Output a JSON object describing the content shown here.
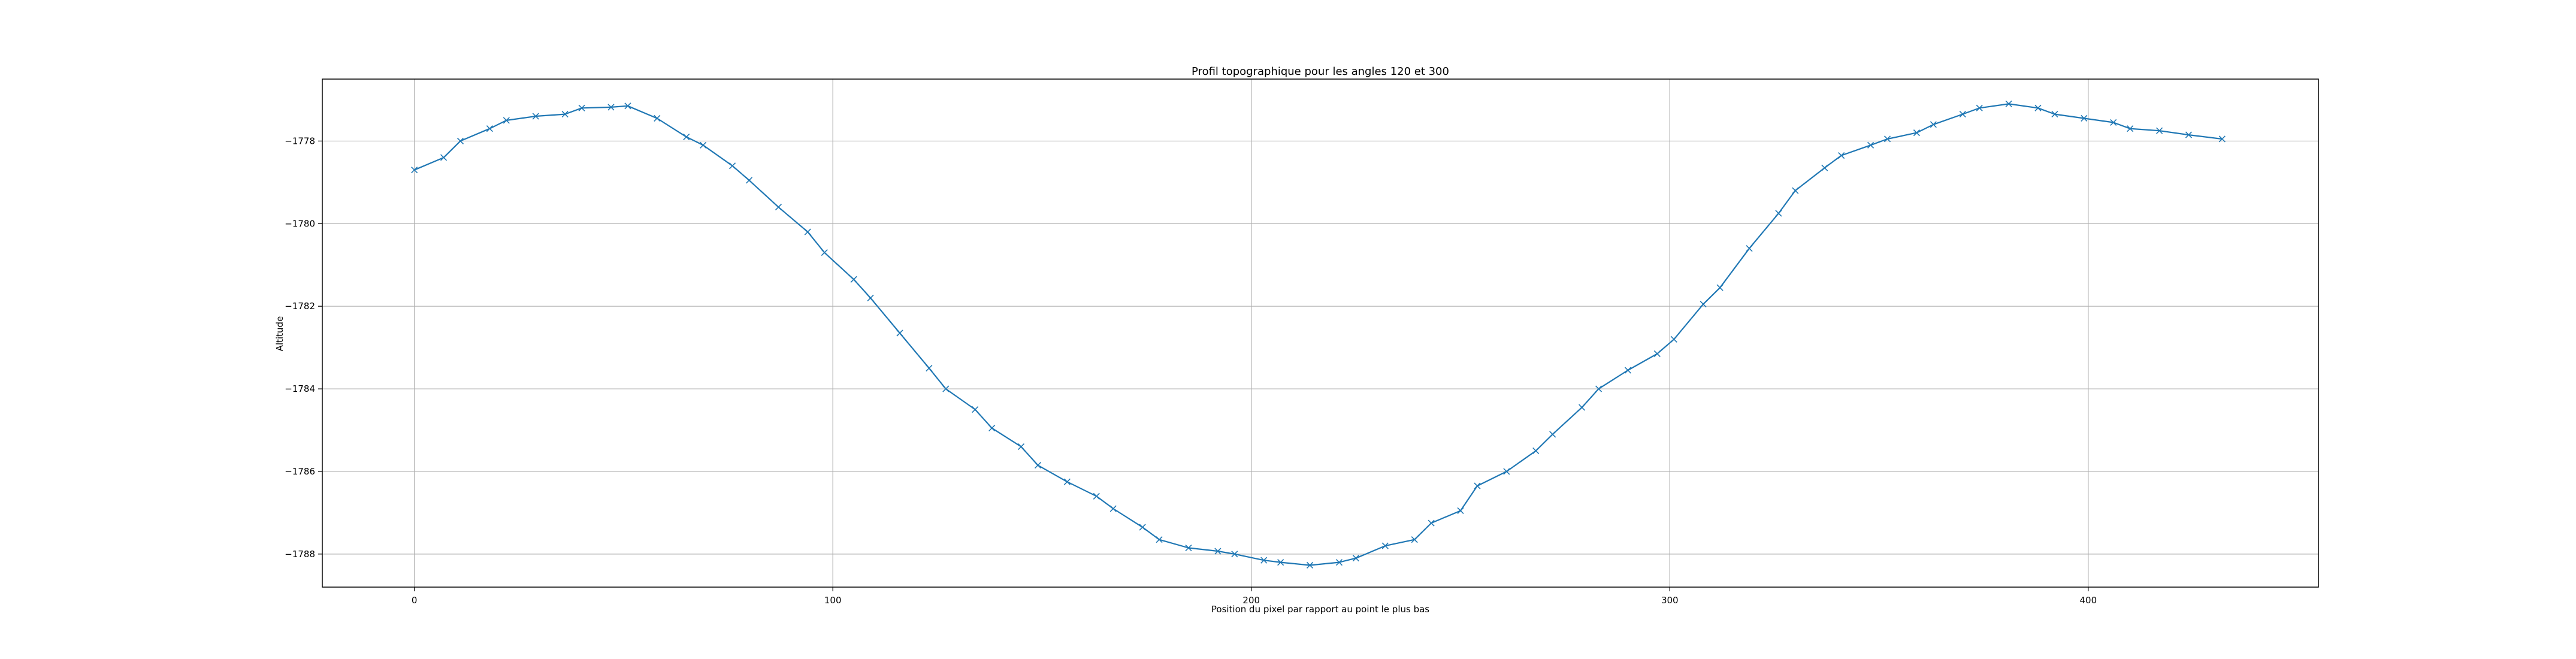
{
  "chart_data": {
    "type": "line",
    "title": "Profil topographique pour les angles 120 et 300",
    "xlabel": "Position du pixel par rapport au point le plus bas",
    "ylabel": "Altitude",
    "xlim": [
      -22,
      455
    ],
    "ylim": [
      -1788.8,
      -1776.5
    ],
    "xticks": [
      0,
      100,
      200,
      300,
      400
    ],
    "yticks": [
      -1788,
      -1786,
      -1784,
      -1782,
      -1780,
      -1778
    ],
    "grid": true,
    "marker": "x",
    "color": "#1f77b4",
    "series": [
      {
        "x": [
          0,
          7,
          11,
          18,
          22,
          29,
          36,
          40,
          47,
          51,
          58,
          65,
          69,
          76,
          80,
          87,
          94,
          98,
          105,
          109,
          116,
          123,
          127,
          134,
          138,
          145,
          149,
          156,
          163,
          167,
          174,
          178,
          185,
          192,
          196,
          203,
          207,
          214,
          221,
          225,
          232,
          239,
          243,
          250,
          254,
          261,
          268,
          272,
          279,
          283,
          290,
          297,
          301,
          308,
          312,
          319,
          326,
          330,
          337,
          341,
          348,
          352,
          359,
          363,
          370,
          374,
          381,
          388,
          392,
          399,
          406,
          410,
          417,
          424,
          432
        ],
        "y": [
          -1778.7,
          -1778.4,
          -1778.0,
          -1777.7,
          -1777.5,
          -1777.4,
          -1777.35,
          -1777.2,
          -1777.18,
          -1777.15,
          -1777.45,
          -1777.9,
          -1778.1,
          -1778.6,
          -1778.95,
          -1779.6,
          -1780.2,
          -1780.7,
          -1781.35,
          -1781.8,
          -1782.65,
          -1783.5,
          -1784.0,
          -1784.5,
          -1784.95,
          -1785.4,
          -1785.85,
          -1786.25,
          -1786.6,
          -1786.9,
          -1787.35,
          -1787.65,
          -1787.85,
          -1787.93,
          -1788.0,
          -1788.15,
          -1788.2,
          -1788.27,
          -1788.2,
          -1788.1,
          -1787.8,
          -1787.65,
          -1787.25,
          -1786.95,
          -1786.35,
          -1786.0,
          -1785.5,
          -1785.1,
          -1784.45,
          -1784.0,
          -1783.55,
          -1783.15,
          -1782.8,
          -1781.95,
          -1781.55,
          -1780.6,
          -1779.75,
          -1779.2,
          -1778.65,
          -1778.35,
          -1778.1,
          -1777.95,
          -1777.8,
          -1777.6,
          -1777.35,
          -1777.2,
          -1777.1,
          -1777.2,
          -1777.35,
          -1777.45,
          -1777.55,
          -1777.7,
          -1777.75,
          -1777.85,
          -1777.95
        ]
      }
    ]
  }
}
